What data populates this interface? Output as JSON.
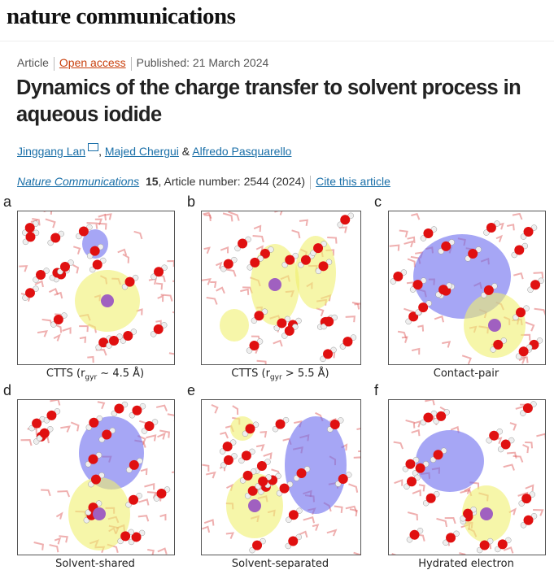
{
  "site": {
    "brand": "nature communications"
  },
  "article": {
    "type": "Article",
    "access": "Open access",
    "published": "Published: 21 March 2024",
    "title": "Dynamics of the charge transfer to solvent process in aqueous iodide",
    "authors": [
      {
        "name": "Jinggang Lan"
      },
      {
        "name": "Majed Chergui"
      },
      {
        "name": "Alfredo Pasquarello"
      }
    ],
    "author_sep1": ", ",
    "author_sep2": " & ",
    "journal": "Nature Communications",
    "volume": "15",
    "article_number": ", Article number: 2544 (2024)",
    "cite_label": "Cite this article"
  },
  "figure": {
    "panels": [
      {
        "letter": "a",
        "caption": "CTTS (r",
        "sub": "gyr",
        "caption_tail": " ~ 4.5 Å)"
      },
      {
        "letter": "b",
        "caption": "CTTS (r",
        "sub": "gyr",
        "caption_tail": " > 5.5 Å)"
      },
      {
        "letter": "c",
        "caption": "Contact-pair"
      },
      {
        "letter": "d",
        "caption": "Solvent-shared"
      },
      {
        "letter": "e",
        "caption": "Solvent-separated"
      },
      {
        "letter": "f",
        "caption": "Hydrated electron"
      }
    ]
  },
  "colors": {
    "link": "#1a6fa8",
    "open_access": "#c9400d",
    "oxygen": "#e01010",
    "iodide": "#a060c0",
    "yellow_density": "#f0f070",
    "blue_density": "#6a6aee"
  }
}
